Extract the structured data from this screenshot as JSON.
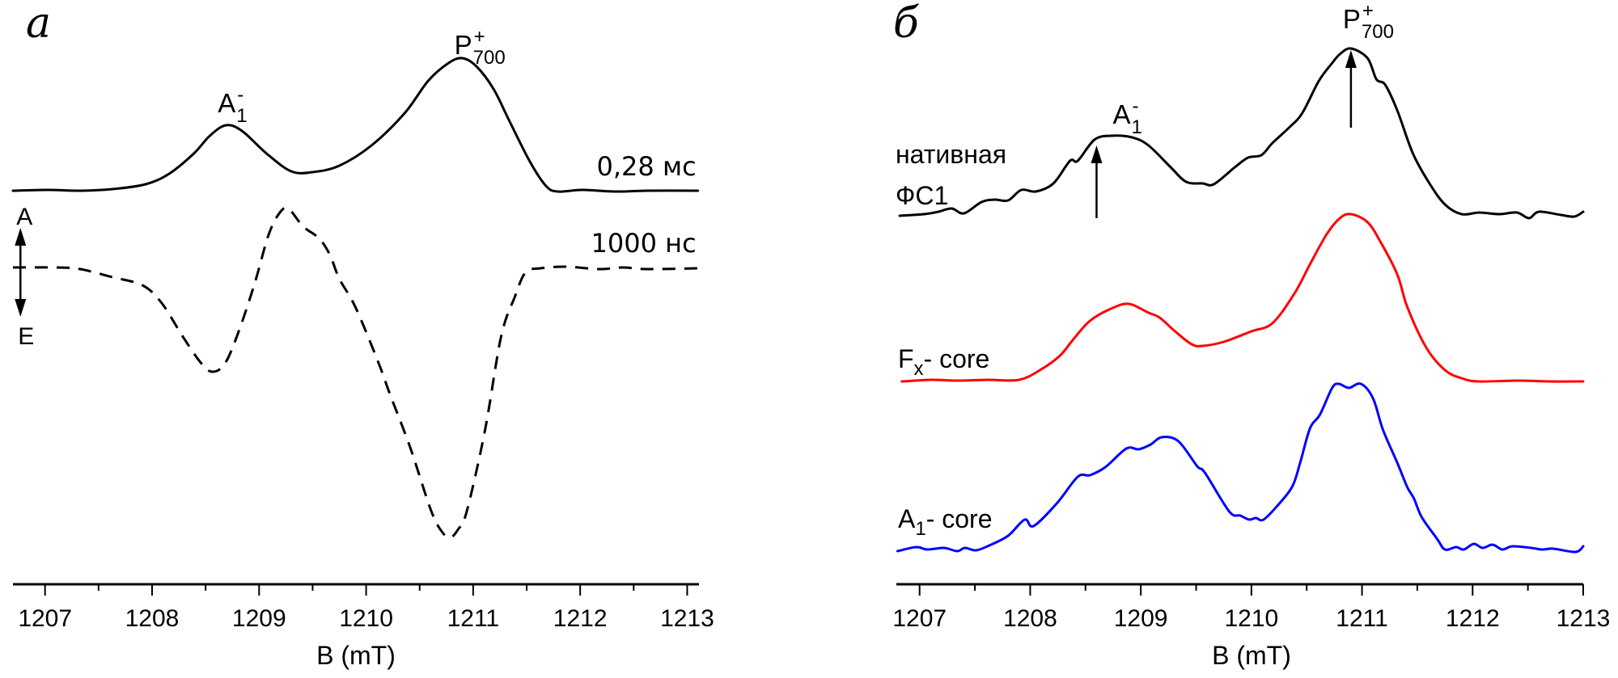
{
  "chart_data": [
    {
      "panel": "a",
      "type": "line",
      "panel_letter": "a",
      "xlabel": "B (mT)",
      "ylabel": "",
      "xlim": [
        1206.7,
        1213.11
      ],
      "ylim": [
        0,
        7.23
      ],
      "x_ticks": [
        1207,
        1208,
        1209,
        1210,
        1211,
        1212,
        1213
      ],
      "x_minor_ticks": [
        1207.5,
        1208.5,
        1209.5,
        1210.5,
        1211.5,
        1212.5
      ],
      "grid": false,
      "y_units": "arbitrary",
      "series": [
        {
          "name": "0,28 мс",
          "style": "solid",
          "color": "#000000",
          "points": [
            [
              1206.7,
              4.87
            ],
            [
              1207.03,
              4.88
            ],
            [
              1207.33,
              4.87
            ],
            [
              1207.63,
              4.89
            ],
            [
              1207.94,
              4.95
            ],
            [
              1208.16,
              5.08
            ],
            [
              1208.39,
              5.33
            ],
            [
              1208.54,
              5.55
            ],
            [
              1208.69,
              5.68
            ],
            [
              1208.84,
              5.61
            ],
            [
              1209.07,
              5.33
            ],
            [
              1209.3,
              5.11
            ],
            [
              1209.5,
              5.1
            ],
            [
              1209.75,
              5.18
            ],
            [
              1210.05,
              5.43
            ],
            [
              1210.36,
              5.83
            ],
            [
              1210.58,
              6.23
            ],
            [
              1210.77,
              6.45
            ],
            [
              1210.9,
              6.51
            ],
            [
              1211.03,
              6.41
            ],
            [
              1211.19,
              6.13
            ],
            [
              1211.34,
              5.73
            ],
            [
              1211.53,
              5.23
            ],
            [
              1211.68,
              4.93
            ],
            [
              1211.79,
              4.86
            ],
            [
              1212.02,
              4.88
            ],
            [
              1212.32,
              4.86
            ],
            [
              1212.62,
              4.87
            ],
            [
              1213.1,
              4.87
            ]
          ]
        },
        {
          "name": "1000 нс",
          "style": "dashed",
          "color": "#000000",
          "points": [
            [
              1206.7,
              3.92
            ],
            [
              1207.11,
              3.92
            ],
            [
              1207.33,
              3.9
            ],
            [
              1207.63,
              3.8
            ],
            [
              1207.91,
              3.7
            ],
            [
              1208.09,
              3.48
            ],
            [
              1208.28,
              3.08
            ],
            [
              1208.45,
              2.75
            ],
            [
              1208.56,
              2.63
            ],
            [
              1208.68,
              2.73
            ],
            [
              1208.81,
              3.13
            ],
            [
              1208.96,
              3.73
            ],
            [
              1209.09,
              4.33
            ],
            [
              1209.2,
              4.61
            ],
            [
              1209.28,
              4.64
            ],
            [
              1209.41,
              4.43
            ],
            [
              1209.56,
              4.28
            ],
            [
              1209.66,
              4.08
            ],
            [
              1209.75,
              3.78
            ],
            [
              1209.9,
              3.43
            ],
            [
              1210.11,
              2.76
            ],
            [
              1210.22,
              2.36
            ],
            [
              1210.41,
              1.7
            ],
            [
              1210.61,
              0.9
            ],
            [
              1210.72,
              0.63
            ],
            [
              1210.79,
              0.58
            ],
            [
              1210.86,
              0.68
            ],
            [
              1210.94,
              0.9
            ],
            [
              1211.11,
              1.9
            ],
            [
              1211.26,
              3.06
            ],
            [
              1211.39,
              3.56
            ],
            [
              1211.49,
              3.86
            ],
            [
              1211.63,
              3.91
            ],
            [
              1211.87,
              3.93
            ],
            [
              1212.17,
              3.9
            ],
            [
              1212.4,
              3.92
            ],
            [
              1212.62,
              3.9
            ],
            [
              1213.1,
              3.91
            ]
          ]
        }
      ],
      "annotations": {
        "peak_labels": [
          {
            "main": "A",
            "sub": "1",
            "sup": "-",
            "x": 1208.69,
            "y": 5.84
          },
          {
            "main": "P",
            "sub": "700",
            "sup": "+",
            "x": 1210.9,
            "y": 6.56
          }
        ],
        "time_labels": [
          {
            "text": "0,28 мс",
            "x": 1213.1,
            "y": 5.06
          },
          {
            "text": "1000 нс",
            "x": 1213.1,
            "y": 4.11
          }
        ],
        "ae_arrow": {
          "x": 1206.77,
          "y_top": 4.41,
          "y_bottom": 3.31,
          "top_label": "A",
          "bottom_label": "E"
        }
      }
    },
    {
      "panel": "б",
      "type": "line",
      "panel_letter": "б",
      "xlabel": "B (mT)",
      "ylabel": "",
      "xlim": [
        1206.79,
        1213.0
      ],
      "ylim": [
        0,
        7.23
      ],
      "x_ticks": [
        1207,
        1208,
        1209,
        1210,
        1211,
        1212,
        1213
      ],
      "x_minor_ticks": [
        1207.5,
        1208.5,
        1209.5,
        1210.5,
        1211.5,
        1212.5
      ],
      "grid": false,
      "y_units": "arbitrary",
      "series": [
        {
          "name": "нативная ФС1",
          "label_lines": [
            "нативная",
            "ФС1"
          ],
          "style": "solid",
          "color": "#000000",
          "points": [
            [
              1206.82,
              4.56
            ],
            [
              1207.04,
              4.58
            ],
            [
              1207.17,
              4.61
            ],
            [
              1207.29,
              4.65
            ],
            [
              1207.4,
              4.59
            ],
            [
              1207.56,
              4.73
            ],
            [
              1207.68,
              4.76
            ],
            [
              1207.8,
              4.75
            ],
            [
              1207.92,
              4.88
            ],
            [
              1208.05,
              4.86
            ],
            [
              1208.21,
              4.96
            ],
            [
              1208.36,
              5.24
            ],
            [
              1208.43,
              5.24
            ],
            [
              1208.58,
              5.5
            ],
            [
              1208.73,
              5.55
            ],
            [
              1208.92,
              5.53
            ],
            [
              1209.07,
              5.43
            ],
            [
              1209.27,
              5.16
            ],
            [
              1209.41,
              4.98
            ],
            [
              1209.56,
              4.96
            ],
            [
              1209.66,
              4.95
            ],
            [
              1209.85,
              5.16
            ],
            [
              1209.97,
              5.28
            ],
            [
              1210.09,
              5.31
            ],
            [
              1210.19,
              5.46
            ],
            [
              1210.34,
              5.65
            ],
            [
              1210.46,
              5.83
            ],
            [
              1210.61,
              6.23
            ],
            [
              1210.73,
              6.45
            ],
            [
              1210.8,
              6.56
            ],
            [
              1210.9,
              6.63
            ],
            [
              1211.05,
              6.51
            ],
            [
              1211.13,
              6.25
            ],
            [
              1211.21,
              6.18
            ],
            [
              1211.32,
              5.86
            ],
            [
              1211.46,
              5.33
            ],
            [
              1211.61,
              4.96
            ],
            [
              1211.75,
              4.7
            ],
            [
              1211.9,
              4.58
            ],
            [
              1212.06,
              4.6
            ],
            [
              1212.24,
              4.58
            ],
            [
              1212.4,
              4.6
            ],
            [
              1212.51,
              4.53
            ],
            [
              1212.6,
              4.61
            ],
            [
              1212.8,
              4.57
            ],
            [
              1212.92,
              4.55
            ],
            [
              1213.0,
              4.61
            ]
          ]
        },
        {
          "name": "Fx- core",
          "label_main": "F",
          "label_sub": "x",
          "label_rest": "- core",
          "style": "solid",
          "color": "#ff0000",
          "points": [
            [
              1206.84,
              2.51
            ],
            [
              1207.1,
              2.53
            ],
            [
              1207.34,
              2.52
            ],
            [
              1207.61,
              2.53
            ],
            [
              1207.9,
              2.53
            ],
            [
              1208.1,
              2.66
            ],
            [
              1208.27,
              2.83
            ],
            [
              1208.39,
              3.03
            ],
            [
              1208.54,
              3.26
            ],
            [
              1208.73,
              3.41
            ],
            [
              1208.89,
              3.47
            ],
            [
              1209.07,
              3.36
            ],
            [
              1209.17,
              3.3
            ],
            [
              1209.31,
              3.13
            ],
            [
              1209.46,
              2.97
            ],
            [
              1209.56,
              2.95
            ],
            [
              1209.75,
              3.0
            ],
            [
              1210.0,
              3.13
            ],
            [
              1210.19,
              3.23
            ],
            [
              1210.39,
              3.6
            ],
            [
              1210.53,
              3.96
            ],
            [
              1210.68,
              4.33
            ],
            [
              1210.8,
              4.53
            ],
            [
              1210.9,
              4.58
            ],
            [
              1211.05,
              4.48
            ],
            [
              1211.17,
              4.23
            ],
            [
              1211.32,
              3.83
            ],
            [
              1211.41,
              3.43
            ],
            [
              1211.58,
              2.93
            ],
            [
              1211.75,
              2.65
            ],
            [
              1211.9,
              2.55
            ],
            [
              1212.05,
              2.51
            ],
            [
              1212.4,
              2.52
            ],
            [
              1212.7,
              2.51
            ],
            [
              1213.0,
              2.51
            ]
          ]
        },
        {
          "name": "A1- core",
          "label_main": "A",
          "label_sub": "1",
          "label_rest": "- core",
          "style": "solid",
          "color": "#0000ff",
          "points": [
            [
              1206.8,
              0.41
            ],
            [
              1206.97,
              0.46
            ],
            [
              1207.07,
              0.43
            ],
            [
              1207.22,
              0.45
            ],
            [
              1207.34,
              0.41
            ],
            [
              1207.41,
              0.45
            ],
            [
              1207.51,
              0.42
            ],
            [
              1207.63,
              0.48
            ],
            [
              1207.8,
              0.6
            ],
            [
              1207.95,
              0.8
            ],
            [
              1208.03,
              0.72
            ],
            [
              1208.24,
              1.0
            ],
            [
              1208.43,
              1.33
            ],
            [
              1208.54,
              1.35
            ],
            [
              1208.68,
              1.45
            ],
            [
              1208.87,
              1.68
            ],
            [
              1208.98,
              1.67
            ],
            [
              1209.09,
              1.73
            ],
            [
              1209.19,
              1.82
            ],
            [
              1209.34,
              1.77
            ],
            [
              1209.51,
              1.46
            ],
            [
              1209.58,
              1.38
            ],
            [
              1209.8,
              0.9
            ],
            [
              1209.9,
              0.85
            ],
            [
              1209.98,
              0.8
            ],
            [
              1210.04,
              0.82
            ],
            [
              1210.11,
              0.8
            ],
            [
              1210.24,
              0.98
            ],
            [
              1210.37,
              1.21
            ],
            [
              1210.44,
              1.5
            ],
            [
              1210.53,
              1.93
            ],
            [
              1210.62,
              2.1
            ],
            [
              1210.73,
              2.43
            ],
            [
              1210.79,
              2.48
            ],
            [
              1210.88,
              2.43
            ],
            [
              1210.99,
              2.48
            ],
            [
              1211.1,
              2.3
            ],
            [
              1211.19,
              1.91
            ],
            [
              1211.32,
              1.5
            ],
            [
              1211.41,
              1.2
            ],
            [
              1211.47,
              1.06
            ],
            [
              1211.54,
              0.83
            ],
            [
              1211.68,
              0.56
            ],
            [
              1211.75,
              0.43
            ],
            [
              1211.85,
              0.46
            ],
            [
              1211.92,
              0.43
            ],
            [
              1212.01,
              0.5
            ],
            [
              1212.09,
              0.45
            ],
            [
              1212.18,
              0.49
            ],
            [
              1212.27,
              0.43
            ],
            [
              1212.36,
              0.47
            ],
            [
              1212.53,
              0.45
            ],
            [
              1212.63,
              0.43
            ],
            [
              1212.73,
              0.44
            ],
            [
              1212.93,
              0.4
            ],
            [
              1213.0,
              0.47
            ]
          ]
        }
      ],
      "annotations": {
        "peak_labels": [
          {
            "main": "A",
            "sub": "1",
            "sup": "-",
            "x": 1208.82,
            "y": 5.7
          },
          {
            "main": "P",
            "sub": "700",
            "sup": "+",
            "x": 1210.9,
            "y": 6.88
          }
        ],
        "arrows": [
          {
            "name": "A1",
            "x": 1208.6,
            "y_from": 4.53,
            "y_to": 5.43
          },
          {
            "name": "P700",
            "x": 1210.9,
            "y_from": 5.65,
            "y_to": 6.61
          }
        ]
      }
    }
  ]
}
